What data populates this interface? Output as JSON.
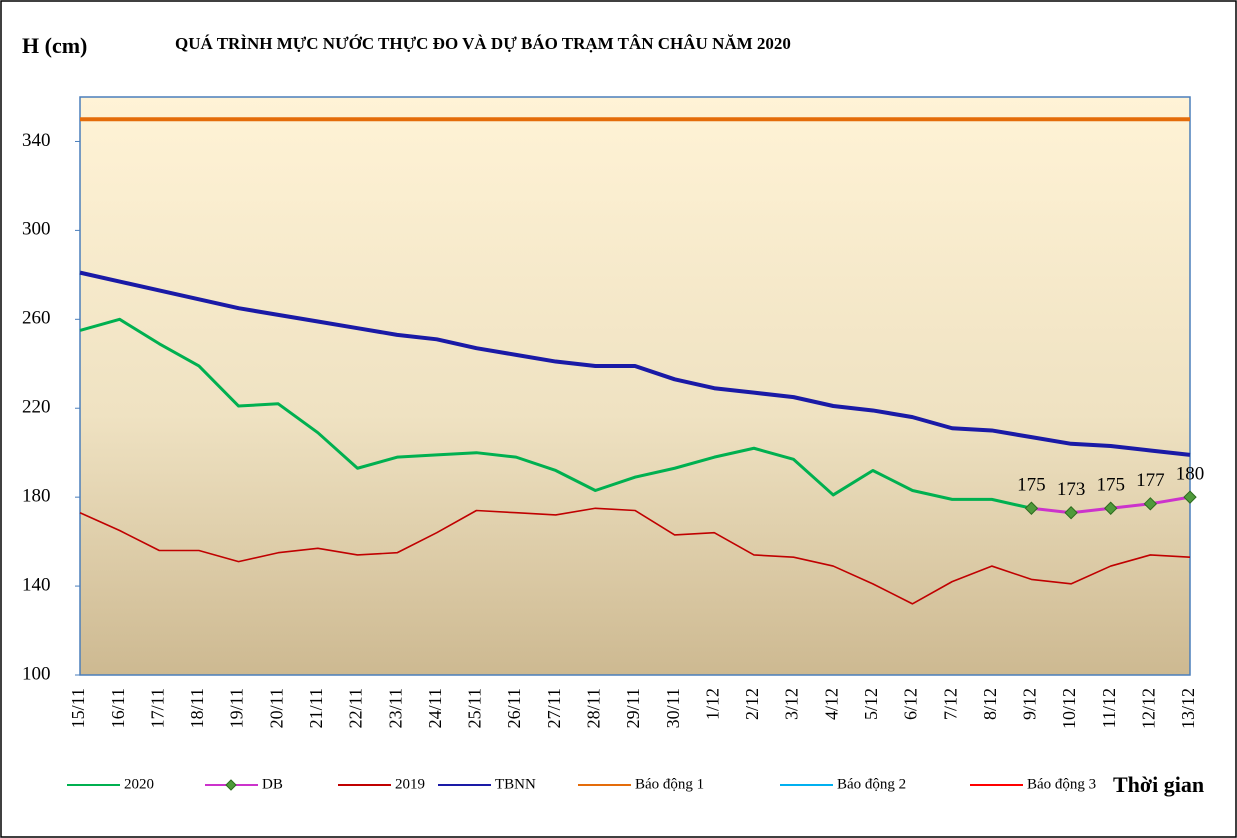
{
  "chart_data": {
    "type": "line",
    "title": "QUÁ TRÌNH MỰC NƯỚC THỰC ĐO VÀ DỰ BÁO TRẠM TÂN CHÂU NĂM 2020",
    "y_label": "H (cm)",
    "x_label": "Thời gian",
    "categories": [
      "15/11",
      "16/11",
      "17/11",
      "18/11",
      "19/11",
      "20/11",
      "21/11",
      "22/11",
      "23/11",
      "24/11",
      "25/11",
      "26/11",
      "27/11",
      "28/11",
      "29/11",
      "30/11",
      "1/12",
      "2/12",
      "3/12",
      "4/12",
      "5/12",
      "6/12",
      "7/12",
      "8/12",
      "9/12",
      "10/12",
      "11/12",
      "12/12",
      "13/12"
    ],
    "ylim": [
      100,
      360
    ],
    "yticks": [
      100,
      140,
      180,
      220,
      260,
      300,
      340
    ],
    "grid": false,
    "legend": "bottom",
    "series": [
      {
        "name": "2020",
        "color": "#00b050",
        "values": [
          255,
          260,
          249,
          239,
          221,
          222,
          209,
          193,
          198,
          199,
          200,
          198,
          192,
          183,
          189,
          193,
          198,
          202,
          197,
          181,
          192,
          183,
          179,
          179,
          175,
          null,
          null,
          null,
          null
        ]
      },
      {
        "name": "DB",
        "color": "#cc33cc",
        "marker": "diamond",
        "data_labels": true,
        "values": [
          null,
          null,
          null,
          null,
          null,
          null,
          null,
          null,
          null,
          null,
          null,
          null,
          null,
          null,
          null,
          null,
          null,
          null,
          null,
          null,
          null,
          null,
          null,
          null,
          175,
          173,
          175,
          177,
          180
        ]
      },
      {
        "name": "2019",
        "color": "#c00000",
        "values": [
          173,
          165,
          156,
          156,
          151,
          155,
          157,
          154,
          155,
          164,
          174,
          173,
          172,
          175,
          174,
          163,
          164,
          154,
          153,
          149,
          141,
          132,
          142,
          149,
          143,
          141,
          149,
          154,
          153
        ]
      },
      {
        "name": "TBNN",
        "color": "#1a1aa6",
        "values": [
          281,
          277,
          273,
          269,
          265,
          262,
          259,
          256,
          253,
          251,
          247,
          244,
          241,
          239,
          239,
          233,
          229,
          227,
          225,
          221,
          219,
          216,
          211,
          210,
          207,
          204,
          203,
          201,
          199
        ]
      },
      {
        "name": "Báo động 1",
        "color": "#e46c0a",
        "values": [
          350,
          350,
          350,
          350,
          350,
          350,
          350,
          350,
          350,
          350,
          350,
          350,
          350,
          350,
          350,
          350,
          350,
          350,
          350,
          350,
          350,
          350,
          350,
          350,
          350,
          350,
          350,
          350,
          350
        ]
      },
      {
        "name": "Báo động 2",
        "color": "#00b0f0",
        "values": [
          null,
          null,
          null,
          null,
          null,
          null,
          null,
          null,
          null,
          null,
          null,
          null,
          null,
          null,
          null,
          null,
          null,
          null,
          null,
          null,
          null,
          null,
          null,
          null,
          null,
          null,
          null,
          null,
          null
        ]
      },
      {
        "name": "Báo động 3",
        "color": "#ff0000",
        "values": [
          null,
          null,
          null,
          null,
          null,
          null,
          null,
          null,
          null,
          null,
          null,
          null,
          null,
          null,
          null,
          null,
          null,
          null,
          null,
          null,
          null,
          null,
          null,
          null,
          null,
          null,
          null,
          null,
          null
        ]
      }
    ]
  }
}
